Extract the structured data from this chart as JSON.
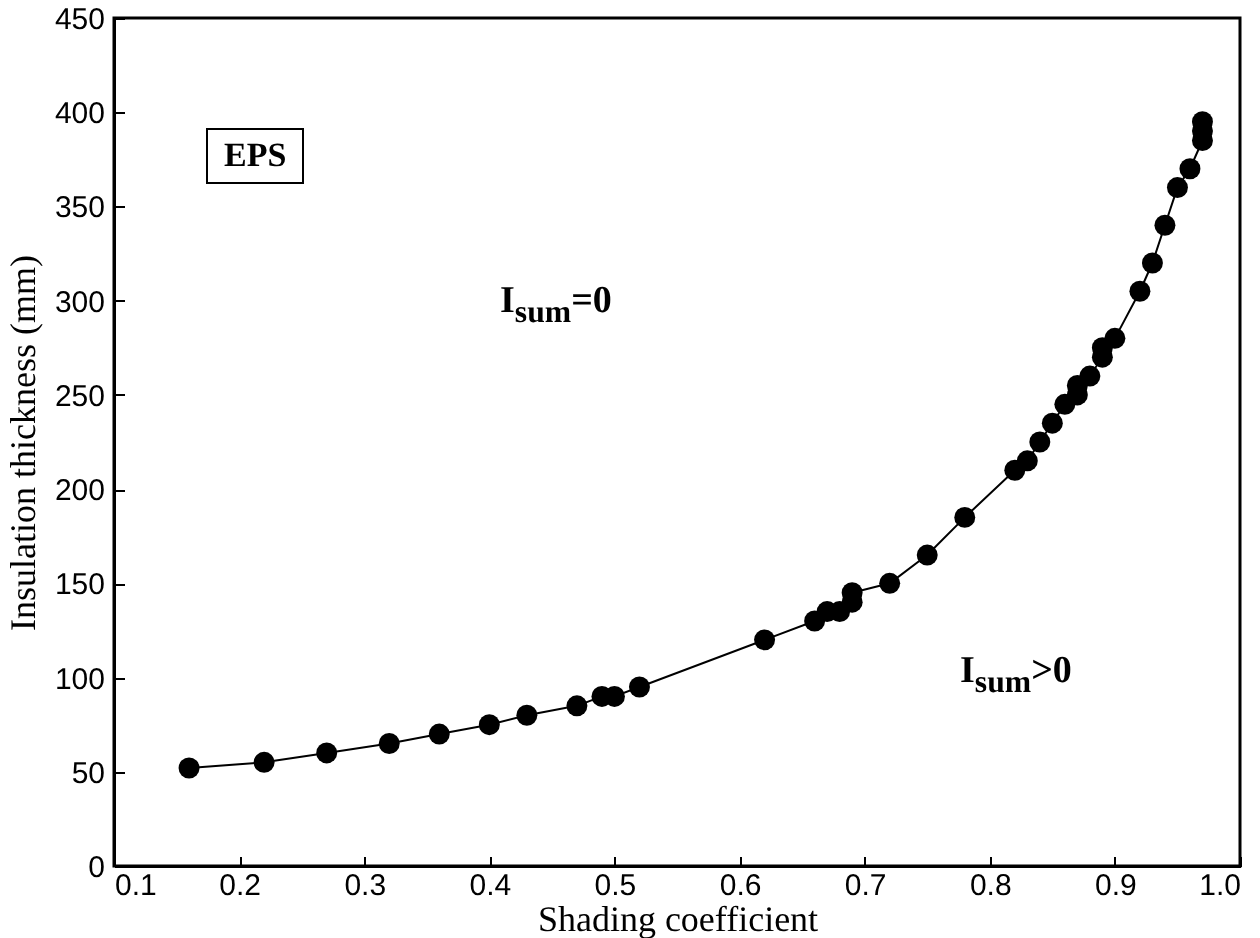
{
  "chart_data": {
    "type": "line",
    "xlabel": "Shading coefficient",
    "ylabel": "Insulation thickness (mm)",
    "annotations": [
      "EPS",
      "I$_{sum}$=0",
      "I$_{sum}$>0"
    ],
    "x": [
      0.16,
      0.22,
      0.27,
      0.32,
      0.36,
      0.4,
      0.43,
      0.47,
      0.49,
      0.5,
      0.52,
      0.62,
      0.66,
      0.67,
      0.68,
      0.69,
      0.69,
      0.72,
      0.75,
      0.78,
      0.82,
      0.83,
      0.84,
      0.85,
      0.86,
      0.87,
      0.87,
      0.88,
      0.89,
      0.89,
      0.9,
      0.92,
      0.93,
      0.94,
      0.95,
      0.96,
      0.97,
      0.97,
      0.97
    ],
    "series": [
      {
        "color": "#000000",
        "values": [
          52,
          55,
          60,
          65,
          70,
          75,
          80,
          85,
          90,
          90,
          95,
          120,
          130,
          135,
          135,
          140,
          145,
          150,
          165,
          185,
          210,
          215,
          225,
          235,
          245,
          250,
          255,
          260,
          270,
          275,
          280,
          305,
          320,
          340,
          360,
          370,
          385,
          390,
          395
        ]
      }
    ],
    "marker": "circle",
    "line_style": "solid",
    "grid": false,
    "xlim": [
      0.1,
      1.0
    ],
    "xticks": [
      0.1,
      0.2,
      0.3,
      0.4,
      0.5,
      0.6,
      0.7,
      0.8,
      0.9,
      {
        "value": 1.0,
        "label": "1.0"
      }
    ],
    "ylim": [
      0,
      450
    ],
    "yticks": [
      0,
      50,
      100,
      150,
      200,
      250,
      300,
      350,
      400,
      450
    ]
  }
}
